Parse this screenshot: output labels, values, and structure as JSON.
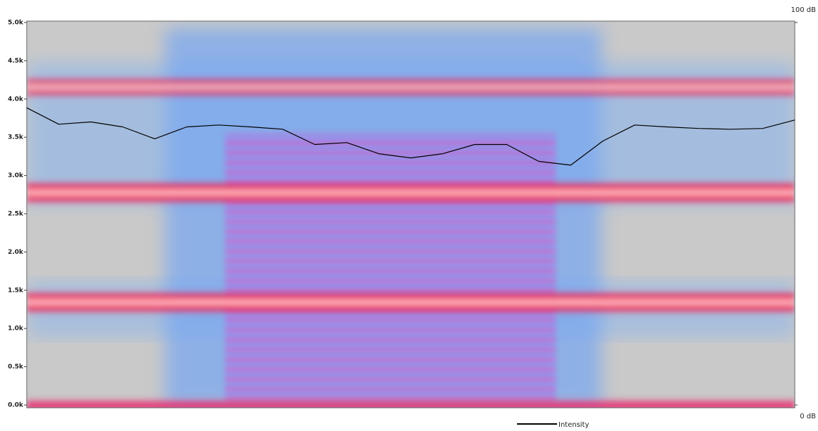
{
  "chart_data": {
    "type": "line",
    "yticks": [
      {
        "value": 0,
        "label": "0.0k"
      },
      {
        "value": 500,
        "label": "0.5k"
      },
      {
        "value": 1000,
        "label": "1.0k"
      },
      {
        "value": 1500,
        "label": "1.5k"
      },
      {
        "value": 2000,
        "label": "2.0k"
      },
      {
        "value": 2500,
        "label": "2.5k"
      },
      {
        "value": 3000,
        "label": "3.0k"
      },
      {
        "value": 3500,
        "label": "3.5k"
      },
      {
        "value": 4000,
        "label": "4.0k"
      },
      {
        "value": 4500,
        "label": "4.5k"
      },
      {
        "value": 5000,
        "label": "5.0k"
      }
    ],
    "ylim": [
      0,
      5000
    ],
    "y2lim": [
      0,
      100
    ],
    "y2ticks": [
      {
        "value": 0,
        "label": "0 dB"
      },
      {
        "value": 100,
        "label": "100 dB"
      }
    ],
    "series": [
      {
        "name": "Intensity",
        "color": "#000000",
        "axis": "y2",
        "values": [
          77.7,
          73.4,
          74.0,
          72.7,
          69.6,
          72.7,
          73.2,
          72.7,
          72.1,
          68.1,
          68.6,
          65.7,
          64.6,
          65.7,
          68.1,
          68.1,
          63.7,
          62.7,
          69.0,
          73.2,
          72.7,
          72.3,
          72.1,
          72.3,
          74.5
        ]
      }
    ],
    "legend": "bottom"
  }
}
